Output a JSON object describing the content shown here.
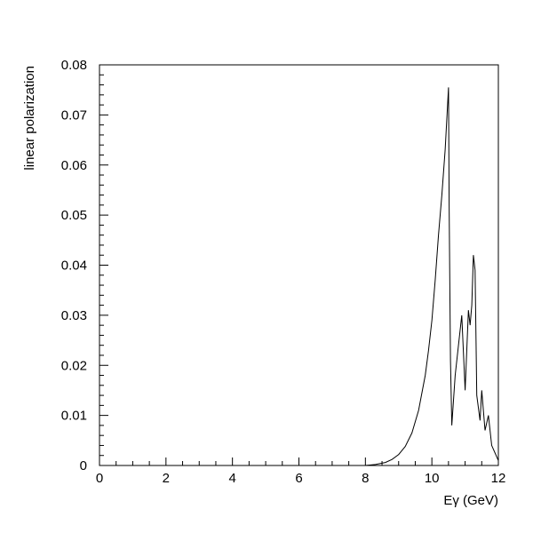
{
  "chart_data": {
    "type": "line",
    "title": "",
    "xlabel": "Eγ (GeV)",
    "ylabel": "linear polarization",
    "xlim": [
      0,
      12
    ],
    "ylim": [
      0,
      0.08
    ],
    "x_ticks": [
      0,
      2,
      4,
      6,
      8,
      10,
      12
    ],
    "x_tick_labels": [
      "0",
      "2",
      "4",
      "6",
      "8",
      "10",
      "12"
    ],
    "y_ticks": [
      0,
      0.01,
      0.02,
      0.03,
      0.04,
      0.05,
      0.06,
      0.07,
      0.08
    ],
    "y_tick_labels": [
      "0",
      "0.01",
      "0.02",
      "0.03",
      "0.04",
      "0.05",
      "0.06",
      "0.07",
      "0.08"
    ],
    "grid": false,
    "legend": "none",
    "line_color": "#000000",
    "series": [
      {
        "x": [
          0,
          8.0,
          8.3,
          8.6,
          8.8,
          9.0,
          9.2,
          9.4,
          9.6,
          9.8,
          9.9,
          10.0,
          10.1,
          10.2,
          10.3,
          10.4,
          10.5,
          10.52,
          10.56,
          10.6,
          10.65,
          10.7,
          10.8,
          10.9,
          11.0,
          11.1,
          11.15,
          11.2,
          11.25,
          11.3,
          11.35,
          11.45,
          11.5,
          11.6,
          11.7,
          11.8,
          12.0
        ],
        "y": [
          0,
          0,
          0.0002,
          0.0006,
          0.0012,
          0.0022,
          0.0038,
          0.0065,
          0.011,
          0.018,
          0.023,
          0.029,
          0.037,
          0.046,
          0.054,
          0.063,
          0.0755,
          0.052,
          0.021,
          0.008,
          0.013,
          0.018,
          0.024,
          0.03,
          0.015,
          0.031,
          0.028,
          0.032,
          0.042,
          0.039,
          0.014,
          0.009,
          0.015,
          0.007,
          0.01,
          0.004,
          0.001
        ]
      }
    ]
  }
}
